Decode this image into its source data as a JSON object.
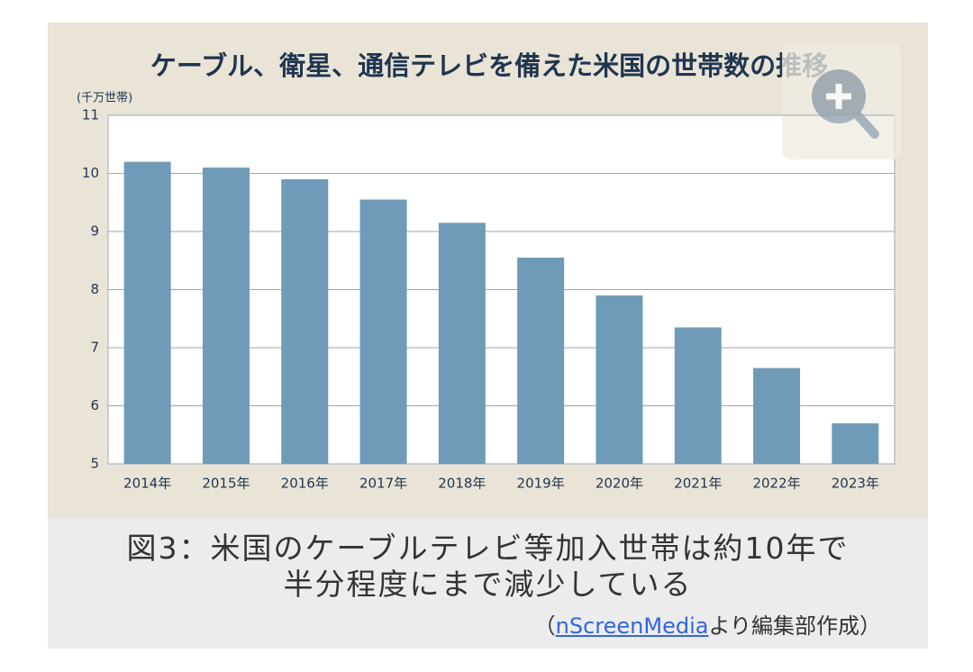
{
  "chart_data": {
    "type": "bar",
    "title": "ケーブル、衛星、通信テレビを備えた米国の世帯数の推移",
    "y_label": "(千万世帯)",
    "categories": [
      "2014年",
      "2015年",
      "2016年",
      "2017年",
      "2018年",
      "2019年",
      "2020年",
      "2021年",
      "2022年",
      "2023年"
    ],
    "values": [
      10.2,
      10.1,
      9.9,
      9.55,
      9.15,
      8.55,
      7.9,
      7.35,
      6.65,
      5.7
    ],
    "color": "#6f9bb8",
    "ylim": [
      5,
      11
    ],
    "yticks": [
      5,
      6,
      7,
      8,
      9,
      10,
      11
    ],
    "grid": true
  },
  "caption": {
    "lines": [
      "図3：米国のケーブルテレビ等加入世帯は約10年で",
      "半分程度にまで減少している"
    ],
    "source": {
      "open": "（",
      "link": "nScreenMedia",
      "rest": "より編集部作成）"
    }
  }
}
